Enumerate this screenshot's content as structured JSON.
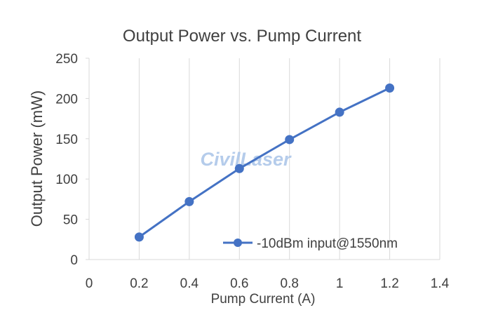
{
  "chart_data": {
    "type": "line",
    "title": "Output Power vs. Pump Current",
    "xlabel": "Pump Current (A)",
    "ylabel": "Output Power (mW)",
    "xlim": [
      0,
      1.4
    ],
    "ylim": [
      0,
      250
    ],
    "x_ticks": [
      "0",
      "0.2",
      "0.4",
      "0.6",
      "0.8",
      "1",
      "1.2",
      "1.4"
    ],
    "y_ticks": [
      "0",
      "50",
      "100",
      "150",
      "200",
      "250"
    ],
    "grid": "vertical",
    "legend_position": "bottom-right",
    "series": [
      {
        "name": "-10dBm input@1550nm",
        "color": "#4472c4",
        "x": [
          0.2,
          0.4,
          0.6,
          0.8,
          1.0,
          1.2
        ],
        "y": [
          28,
          72,
          113,
          149,
          183,
          213
        ]
      }
    ]
  },
  "watermark": "CivilLaser"
}
